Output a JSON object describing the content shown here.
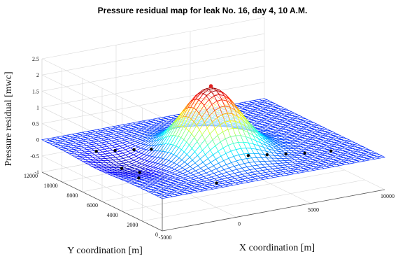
{
  "chart_data": {
    "type": "surface3d",
    "title": "Pressure residual map for leak No. 16, day 4, 10 A.M.",
    "xlabel": "X coordination [m]",
    "ylabel": "Y coordination [m]",
    "zlabel": "Pressure residual [mwc]",
    "x_ticks": [
      "-5000",
      "0",
      "5000",
      "10000"
    ],
    "y_ticks": [
      "0",
      "2000",
      "4000",
      "6000",
      "8000",
      "10000",
      "12000"
    ],
    "z_ticks": [
      "-1",
      "-0.5",
      "0",
      "0.5",
      "1",
      "1.5",
      "2",
      "2.5"
    ],
    "xlim": [
      -5000,
      10000
    ],
    "ylim": [
      0,
      12000
    ],
    "zlim": [
      -1,
      2.5
    ],
    "surface": {
      "baseline": 0,
      "peak": {
        "x": 2000,
        "y": 5500,
        "z": 2.0,
        "sigma": 1700
      },
      "depression": {
        "x": -2000,
        "y": 6500,
        "z": -0.3,
        "sigma": 1800
      }
    },
    "peak_marker": {
      "x": 2000,
      "y": 5500,
      "z": 2.0,
      "color": "#e02020"
    },
    "sensor_points": [
      {
        "x": -3500,
        "y": 8800,
        "z": 0.0
      },
      {
        "x": -2500,
        "y": 8400,
        "z": 0.0
      },
      {
        "x": -1500,
        "y": 8000,
        "z": 0.0
      },
      {
        "x": -600,
        "y": 7600,
        "z": 0.0
      },
      {
        "x": -3000,
        "y": 7000,
        "z": -0.3
      },
      {
        "x": -2200,
        "y": 6400,
        "z": -0.4
      },
      {
        "x": -2800,
        "y": 5600,
        "z": -0.4
      },
      {
        "x": 3500,
        "y": 4000,
        "z": 0.0
      },
      {
        "x": 4500,
        "y": 3600,
        "z": 0.0
      },
      {
        "x": 5500,
        "y": 3200,
        "z": 0.0
      },
      {
        "x": 6500,
        "y": 2800,
        "z": 0.0
      },
      {
        "x": 8000,
        "y": 2400,
        "z": 0.0
      },
      {
        "x": -800,
        "y": 800,
        "z": 0.0
      }
    ],
    "grid": true,
    "colormap": "jet"
  }
}
